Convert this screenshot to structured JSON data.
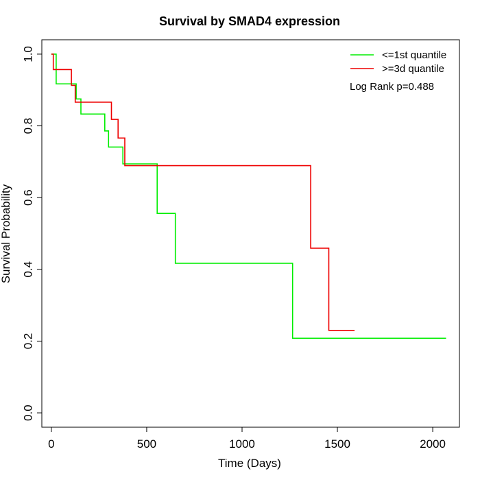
{
  "chart_data": {
    "type": "line",
    "title": "Survival by SMAD4 expression",
    "xlabel": "Time (Days)",
    "ylabel": "Survival Probability",
    "xlim": [
      -50,
      2140
    ],
    "ylim": [
      -0.04,
      1.04
    ],
    "xticks": [
      0,
      500,
      1000,
      1500,
      2000
    ],
    "yticks": [
      0.0,
      0.2,
      0.4,
      0.6,
      0.8,
      1.0
    ],
    "xtick_labels": [
      "0",
      "500",
      "1000",
      "1500",
      "2000"
    ],
    "ytick_labels": [
      "0.0",
      "0.2",
      "0.4",
      "0.6",
      "0.8",
      "1.0"
    ],
    "grid": false,
    "legend_position": "top-right",
    "annotation": "Log Rank p=0.488",
    "series": [
      {
        "name": "<=1st quantile",
        "color": "#00ee00",
        "step": true,
        "x": [
          0,
          25,
          130,
          155,
          280,
          300,
          375,
          555,
          650,
          1265,
          2070
        ],
        "y": [
          1.0,
          0.917,
          0.875,
          0.833,
          0.786,
          0.741,
          0.694,
          0.556,
          0.417,
          0.208,
          0.208
        ]
      },
      {
        "name": ">=3d quantile",
        "color": "#ee0000",
        "step": true,
        "x": [
          0,
          10,
          105,
          125,
          315,
          350,
          385,
          1360,
          1455,
          1590
        ],
        "y": [
          1.0,
          0.957,
          0.913,
          0.866,
          0.818,
          0.766,
          0.689,
          0.459,
          0.23,
          0.23
        ]
      }
    ]
  }
}
